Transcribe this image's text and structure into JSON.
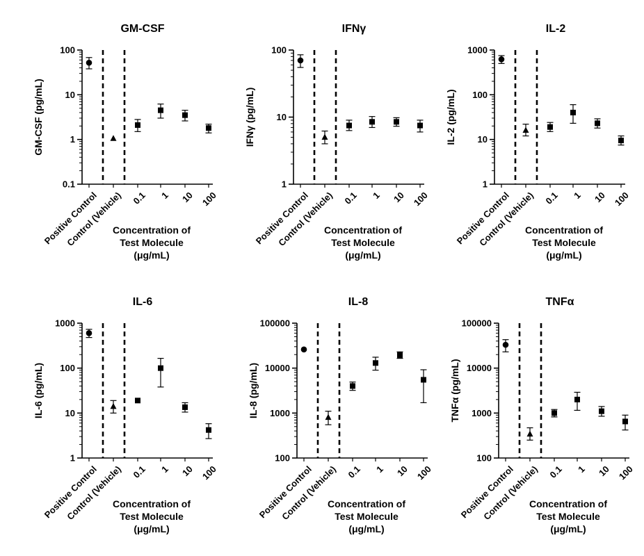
{
  "chart_data": [
    {
      "type": "scatter",
      "title": "GM-CSF",
      "ylabel": "GM-CSF (pg/mL)",
      "yscale": "log",
      "ylim": [
        0.1,
        100
      ],
      "yticks": [
        "0.1",
        "1",
        "10",
        "100"
      ],
      "xcategories": [
        "Positive Control",
        "Control (Vehicle)",
        "0.1",
        "1",
        "10",
        "100"
      ],
      "xlabel": [
        "Concentration of",
        "Test Molecule",
        "(μg/mL)"
      ],
      "points": [
        {
          "x": "Positive Control",
          "y": 52,
          "low": 38,
          "high": 68,
          "marker": "circle"
        },
        {
          "x": "Control (Vehicle)",
          "y": 1.05,
          "low": 1.05,
          "high": 1.05,
          "marker": "triangle"
        },
        {
          "x": "0.1",
          "y": 2.1,
          "low": 1.5,
          "high": 2.8,
          "marker": "square"
        },
        {
          "x": "1",
          "y": 4.5,
          "low": 3.0,
          "high": 6.2,
          "marker": "square"
        },
        {
          "x": "10",
          "y": 3.5,
          "low": 2.6,
          "high": 4.5,
          "marker": "square"
        },
        {
          "x": "100",
          "y": 1.8,
          "low": 1.4,
          "high": 2.2,
          "marker": "square"
        }
      ]
    },
    {
      "type": "scatter",
      "title": "IFNγ",
      "ylabel": "IFNγ (pg/mL)",
      "yscale": "log",
      "ylim": [
        1,
        100
      ],
      "yticks": [
        "1",
        "10",
        "100"
      ],
      "xcategories": [
        "Positive Control",
        "Control (Vehicle)",
        "0.1",
        "1",
        "10",
        "100"
      ],
      "xlabel": [
        "Concentration of",
        "Test Molecule",
        "(μg/mL)"
      ],
      "points": [
        {
          "x": "Positive Control",
          "y": 70,
          "low": 55,
          "high": 85,
          "marker": "circle"
        },
        {
          "x": "Control (Vehicle)",
          "y": 5.0,
          "low": 4.0,
          "high": 6.2,
          "marker": "triangle"
        },
        {
          "x": "0.1",
          "y": 7.5,
          "low": 6.3,
          "high": 9.0,
          "marker": "square"
        },
        {
          "x": "1",
          "y": 8.5,
          "low": 7.0,
          "high": 10.2,
          "marker": "square"
        },
        {
          "x": "10",
          "y": 8.5,
          "low": 7.3,
          "high": 9.8,
          "marker": "square"
        },
        {
          "x": "100",
          "y": 7.5,
          "low": 6.0,
          "high": 9.0,
          "marker": "square"
        }
      ]
    },
    {
      "type": "scatter",
      "title": "IL-2",
      "ylabel": "IL-2 (pg/mL)",
      "yscale": "log",
      "ylim": [
        1,
        1000
      ],
      "yticks": [
        "1",
        "10",
        "100",
        "1000"
      ],
      "xcategories": [
        "Positive Control",
        "Control (Vehicle)",
        "0.1",
        "1",
        "10",
        "100"
      ],
      "xlabel": [
        "Concentration of",
        "Test Molecule",
        "(μg/mL)"
      ],
      "points": [
        {
          "x": "Positive Control",
          "y": 620,
          "low": 500,
          "high": 750,
          "marker": "circle"
        },
        {
          "x": "Control (Vehicle)",
          "y": 16,
          "low": 12,
          "high": 22,
          "marker": "triangle"
        },
        {
          "x": "0.1",
          "y": 19,
          "low": 15,
          "high": 24,
          "marker": "square"
        },
        {
          "x": "1",
          "y": 40,
          "low": 23,
          "high": 60,
          "marker": "square"
        },
        {
          "x": "10",
          "y": 23,
          "low": 18,
          "high": 29,
          "marker": "square"
        },
        {
          "x": "100",
          "y": 9.5,
          "low": 7.5,
          "high": 12,
          "marker": "square"
        }
      ]
    },
    {
      "type": "scatter",
      "title": "IL-6",
      "ylabel": "IL-6 (pg/mL)",
      "yscale": "log",
      "ylim": [
        1,
        1000
      ],
      "yticks": [
        "1",
        "10",
        "100",
        "1000"
      ],
      "xcategories": [
        "Positive Control",
        "Control (Vehicle)",
        "0.1",
        "1",
        "10",
        "100"
      ],
      "xlabel": [
        "Concentration of",
        "Test Molecule",
        "(μg/mL)"
      ],
      "points": [
        {
          "x": "Positive Control",
          "y": 600,
          "low": 480,
          "high": 730,
          "marker": "circle"
        },
        {
          "x": "Control (Vehicle)",
          "y": 14,
          "low": 10,
          "high": 19,
          "marker": "triangle"
        },
        {
          "x": "0.1",
          "y": 19,
          "low": 19,
          "high": 19,
          "marker": "square"
        },
        {
          "x": "1",
          "y": 100,
          "low": 38,
          "high": 165,
          "marker": "square"
        },
        {
          "x": "10",
          "y": 13.5,
          "low": 10.5,
          "high": 17,
          "marker": "square"
        },
        {
          "x": "100",
          "y": 4.2,
          "low": 2.7,
          "high": 5.8,
          "marker": "square"
        }
      ]
    },
    {
      "type": "scatter",
      "title": "IL-8",
      "ylabel": "IL-8 (pg/mL)",
      "yscale": "log",
      "ylim": [
        100,
        100000
      ],
      "yticks": [
        "100",
        "1000",
        "10000",
        "100000"
      ],
      "xcategories": [
        "Positive Control",
        "Control (Vehicle)",
        "0.1",
        "1",
        "10",
        "100"
      ],
      "xlabel": [
        "Concentration of",
        "Test Molecule",
        "(μg/mL)"
      ],
      "points": [
        {
          "x": "Positive Control",
          "y": 26000,
          "low": 26000,
          "high": 26000,
          "marker": "circle"
        },
        {
          "x": "Control (Vehicle)",
          "y": 800,
          "low": 550,
          "high": 1100,
          "marker": "triangle"
        },
        {
          "x": "0.1",
          "y": 4000,
          "low": 3200,
          "high": 4900,
          "marker": "square"
        },
        {
          "x": "1",
          "y": 13000,
          "low": 9000,
          "high": 17500,
          "marker": "square"
        },
        {
          "x": "10",
          "y": 19500,
          "low": 16500,
          "high": 23000,
          "marker": "square"
        },
        {
          "x": "100",
          "y": 5500,
          "low": 1700,
          "high": 9200,
          "marker": "square"
        }
      ]
    },
    {
      "type": "scatter",
      "title": "TNFα",
      "ylabel": "TNFα (pg/mL)",
      "yscale": "log",
      "ylim": [
        100,
        100000
      ],
      "yticks": [
        "100",
        "1000",
        "10000",
        "100000"
      ],
      "xcategories": [
        "Positive Control",
        "Control (Vehicle)",
        "0.1",
        "1",
        "10",
        "100"
      ],
      "xlabel": [
        "Concentration of",
        "Test Molecule",
        "(μg/mL)"
      ],
      "points": [
        {
          "x": "Positive Control",
          "y": 33000,
          "low": 23000,
          "high": 43000,
          "marker": "circle"
        },
        {
          "x": "Control (Vehicle)",
          "y": 340,
          "low": 250,
          "high": 470,
          "marker": "triangle"
        },
        {
          "x": "0.1",
          "y": 1000,
          "low": 820,
          "high": 1200,
          "marker": "square"
        },
        {
          "x": "1",
          "y": 2000,
          "low": 1150,
          "high": 2900,
          "marker": "square"
        },
        {
          "x": "10",
          "y": 1100,
          "low": 850,
          "high": 1400,
          "marker": "square"
        },
        {
          "x": "100",
          "y": 650,
          "low": 420,
          "high": 900,
          "marker": "square"
        }
      ]
    }
  ]
}
